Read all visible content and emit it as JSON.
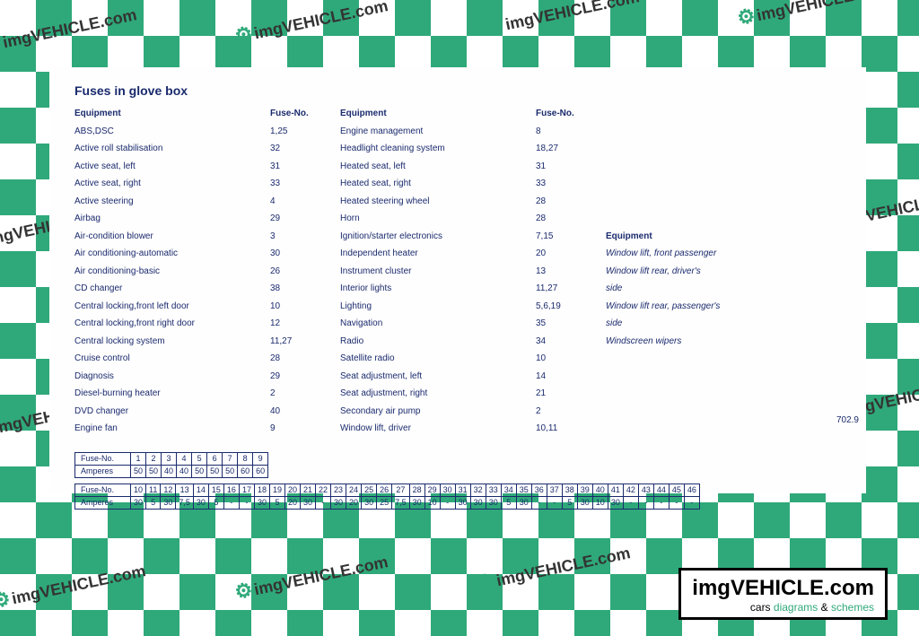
{
  "watermark_text": "imgVEHICLE.com",
  "document": {
    "title": "Fuses in glove box",
    "headers": {
      "equipment": "Equipment",
      "fuse": "Fuse-No."
    },
    "col1": [
      {
        "eq": "ABS,DSC",
        "no": "1,25"
      },
      {
        "eq": "Active roll stabilisation",
        "no": "32"
      },
      {
        "eq": "Active seat, left",
        "no": "31"
      },
      {
        "eq": "Active seat, right",
        "no": "33"
      },
      {
        "eq": "Active steering",
        "no": "4"
      },
      {
        "eq": "Airbag",
        "no": "29"
      },
      {
        "eq": "Air-condition blower",
        "no": "3"
      },
      {
        "eq": "Air conditioning-automatic",
        "no": "30"
      },
      {
        "eq": "Air conditioning-basic",
        "no": "26"
      },
      {
        "eq": "CD changer",
        "no": "38"
      },
      {
        "eq": "Central locking,front left door",
        "no": "10"
      },
      {
        "eq": "Central locking,front right door",
        "no": "12"
      },
      {
        "eq": "Central locking system",
        "no": "11,27"
      },
      {
        "eq": "Cruise control",
        "no": "28"
      },
      {
        "eq": "Diagnosis",
        "no": "29"
      },
      {
        "eq": "Diesel-burning heater",
        "no": "2"
      },
      {
        "eq": "DVD changer",
        "no": "40"
      },
      {
        "eq": "Engine fan",
        "no": "9"
      }
    ],
    "col2": [
      {
        "eq": "Engine management",
        "no": "8"
      },
      {
        "eq": "Headlight cleaning system",
        "no": "18,27"
      },
      {
        "eq": "Heated seat, left",
        "no": "31"
      },
      {
        "eq": "Heated seat, right",
        "no": "33"
      },
      {
        "eq": "Heated steering wheel",
        "no": "28"
      },
      {
        "eq": "Horn",
        "no": "28"
      },
      {
        "eq": "Ignition/starter electronics",
        "no": "7,15"
      },
      {
        "eq": "Independent heater",
        "no": "20"
      },
      {
        "eq": "Instrument cluster",
        "no": "13"
      },
      {
        "eq": "Interior lights",
        "no": "11,27"
      },
      {
        "eq": "Lighting",
        "no": "5,6,19"
      },
      {
        "eq": "Navigation",
        "no": "35"
      },
      {
        "eq": "Radio",
        "no": "34"
      },
      {
        "eq": "Satellite radio",
        "no": "10"
      },
      {
        "eq": "Seat adjustment, left",
        "no": "14"
      },
      {
        "eq": "Seat adjustment, right",
        "no": "21"
      },
      {
        "eq": "Secondary air pump",
        "no": "2"
      },
      {
        "eq": "Window lift, driver",
        "no": "10,11"
      }
    ],
    "col3": [
      {
        "eq": "Window lift, front passenger"
      },
      {
        "eq": "Window lift rear, driver's"
      },
      {
        "eq": "side"
      },
      {
        "eq": "Window lift rear, passenger's"
      },
      {
        "eq": "side"
      },
      {
        "eq": "Windscreen wipers"
      }
    ],
    "fuse_table1": {
      "row_labels": [
        "Fuse-No.",
        "Amperes"
      ],
      "nos": [
        "1",
        "2",
        "3",
        "4",
        "5",
        "6",
        "7",
        "8",
        "9"
      ],
      "amps": [
        "50",
        "50",
        "40",
        "40",
        "50",
        "50",
        "50",
        "60",
        "60"
      ]
    },
    "fuse_table2": {
      "row_labels": [
        "Fuse-No.",
        "Amperes"
      ],
      "nos": [
        "10",
        "11",
        "12",
        "13",
        "14",
        "15",
        "16",
        "17",
        "18",
        "19",
        "20",
        "21",
        "22",
        "23",
        "24",
        "25",
        "26",
        "27",
        "28",
        "29",
        "30",
        "31",
        "32",
        "33",
        "34",
        "35",
        "36",
        "37",
        "38",
        "39",
        "40",
        "41",
        "42",
        "43",
        "44",
        "45",
        "46"
      ],
      "amps": [
        "30",
        "5",
        "30",
        "7,5",
        "30",
        "5",
        "-",
        "-",
        "30",
        "5",
        "20",
        "30",
        "-",
        "30",
        "20",
        "30",
        "25",
        "7,5",
        "30",
        "10",
        "-",
        "30",
        "30",
        "30",
        "5",
        "30",
        "-",
        "-",
        "5",
        "30",
        "10",
        "30",
        "-",
        "-",
        "-",
        "-",
        "-"
      ]
    },
    "ref_num": "702.9"
  },
  "brand": {
    "main": "imgVEHICLE.com",
    "sub_cars": "cars",
    "sub_diag": "diagrams",
    "sub_amp": "&",
    "sub_sch": "schemes"
  },
  "colors": {
    "checker": "#2fa97a",
    "doc_text": "#1a2a6d",
    "white": "#ffffff"
  }
}
